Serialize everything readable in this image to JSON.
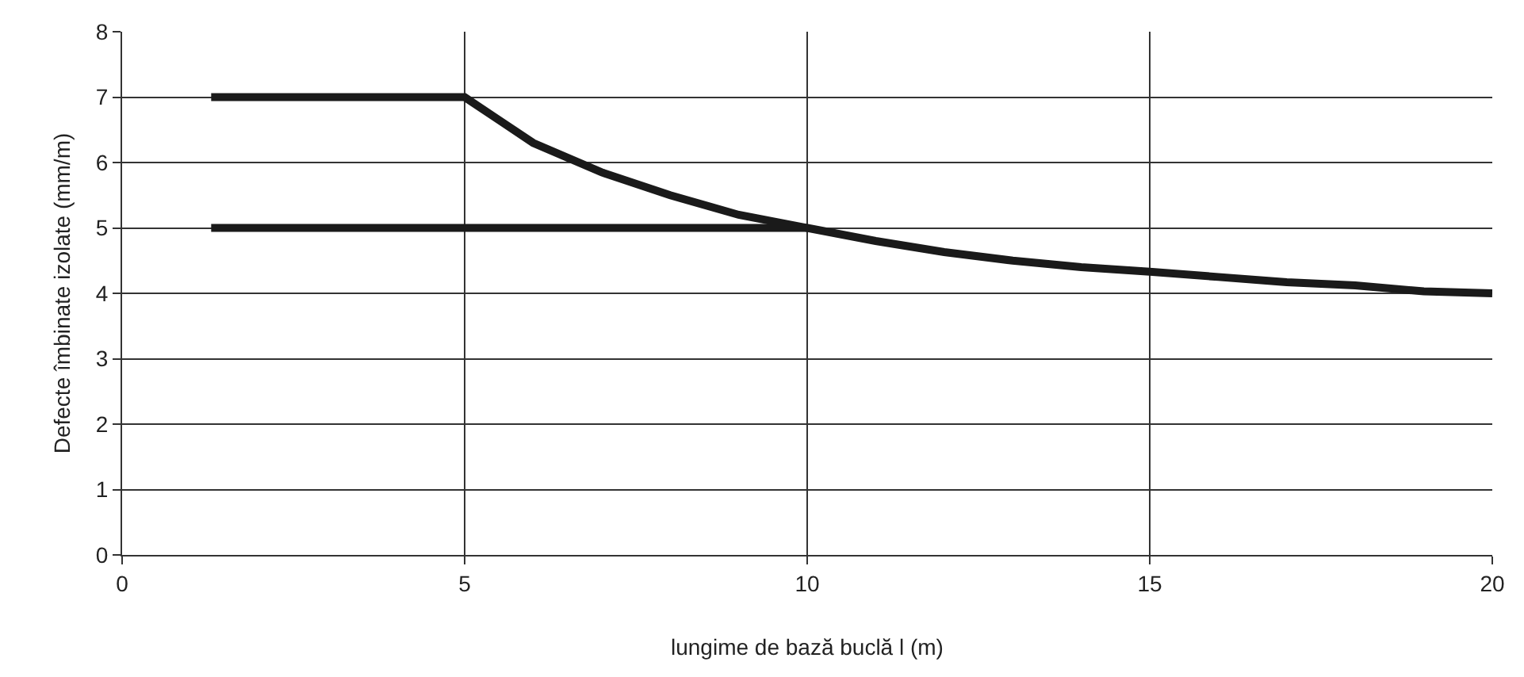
{
  "chart_data": {
    "type": "line",
    "xlabel": "lungime de bază buclă l (m)",
    "ylabel": "Defecte îmbinate izolate (mm/m)",
    "series": [
      {
        "color": "#1a1a1a",
        "x": [
          1.3,
          5,
          5.5,
          6,
          7,
          8,
          9,
          10,
          11,
          12,
          13,
          14,
          15,
          16,
          17,
          18,
          19,
          20
        ],
        "values": [
          7,
          7,
          6.65,
          6.3,
          5.85,
          5.5,
          5.2,
          5,
          4.8,
          4.63,
          4.5,
          4.4,
          4.33,
          4.25,
          4.17,
          4.12,
          4.03,
          4
        ]
      },
      {
        "color": "#1a1a1a",
        "x": [
          1.3,
          10
        ],
        "values": [
          5,
          5
        ]
      }
    ],
    "xlim": [
      0,
      20
    ],
    "xticks": [
      0,
      5,
      10,
      15,
      20
    ],
    "ylim": [
      0,
      8
    ],
    "yticks": [
      0,
      1,
      2,
      3,
      4,
      5,
      6,
      7,
      8
    ],
    "grid": true,
    "marker": "none",
    "line_style": "solid"
  }
}
